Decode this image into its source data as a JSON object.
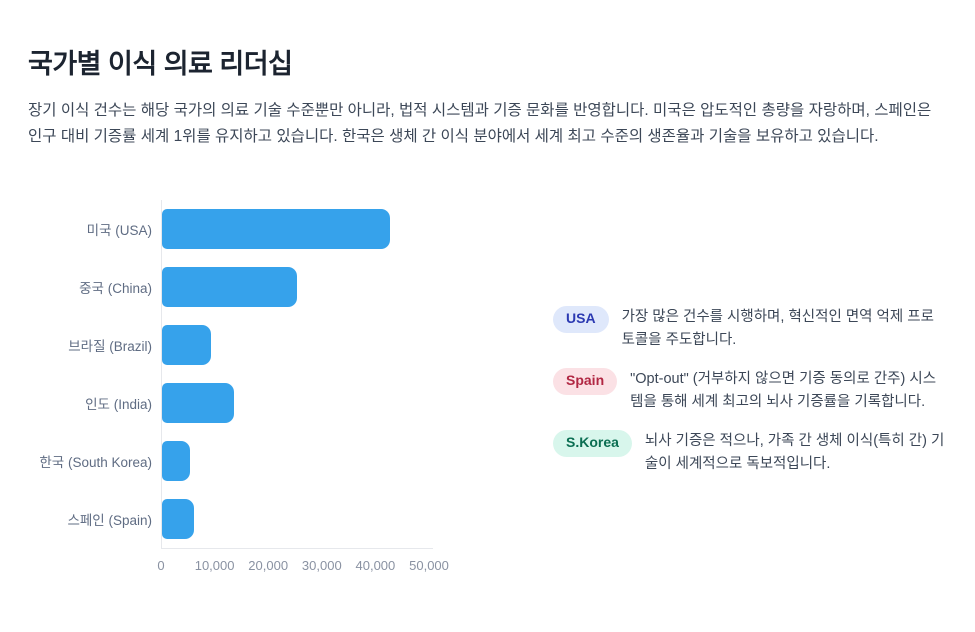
{
  "header": {
    "title": "국가별 이식 의료 리더십",
    "description": "장기 이식 건수는 해당 국가의 의료 기술 수준뿐만 아니라, 법적 시스템과 기증 문화를 반영합니다. 미국은 압도적인 총량을 자랑하며, 스페인은 인구 대비 기증률 세계 1위를 유지하고 있습니다. 한국은 생체 간 이식 분야에서 세계 최고 수준의 생존율과 기술을 보유하고 있습니다."
  },
  "chart_data": {
    "type": "bar",
    "orientation": "horizontal",
    "title": "",
    "xlabel": "",
    "ylabel": "",
    "categories": [
      "미국 (USA)",
      "중국 (China)",
      "브라질 (Brazil)",
      "인도 (India)",
      "한국 (South Korea)",
      "스페인 (Spain)"
    ],
    "values": [
      42500,
      25200,
      9200,
      13400,
      5200,
      5900
    ],
    "xlim": [
      0,
      50000
    ],
    "x_ticks": [
      0,
      10000,
      20000,
      30000,
      40000,
      50000
    ],
    "x_tick_labels": [
      "0",
      "10,000",
      "20,000",
      "30,000",
      "40,000",
      "50,000"
    ],
    "bar_color": "#36A2EB",
    "grid": false,
    "legend": "none"
  },
  "annotations": {
    "items": [
      {
        "badge": "USA",
        "text": "가장 많은 건수를 시행하며, 혁신적인 면역 억제 프로토콜을 주도합니다.",
        "badge_bg": "#dfe8fb",
        "badge_color": "#2c3ab2"
      },
      {
        "badge": "Spain",
        "text": "\"Opt-out\" (거부하지 않으면 기증 동의로 간주) 시스템을 통해 세계 최고의 뇌사 기증률을 기록합니다.",
        "badge_bg": "#fbe1e5",
        "badge_color": "#b12743"
      },
      {
        "badge": "S.Korea",
        "text": "뇌사 기증은 적으나, 가족 간 생체 이식(특히 간) 기술이 세계적으로 독보적입니다.",
        "badge_bg": "#d8f6ec",
        "badge_color": "#0b6e52"
      }
    ]
  },
  "colors": {
    "bar": "#36A2EB",
    "title_text": "#1c2430",
    "body_text": "#3c4757",
    "category_label": "#5f6c83",
    "tick_label": "#8a92a2",
    "axis_line": "#e6e8ec",
    "usa_badge_bg": "#dfe8fb",
    "usa_badge_text": "#2c3ab2",
    "spain_badge_bg": "#fbe1e5",
    "spain_badge_text": "#b12743",
    "skorea_badge_bg": "#d8f6ec",
    "skorea_badge_text": "#0b6e52"
  }
}
